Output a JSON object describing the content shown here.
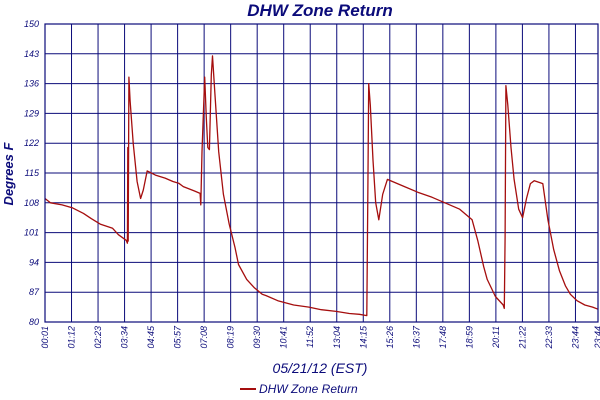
{
  "chart_data": {
    "type": "line",
    "title": "DHW Zone Return",
    "xlabel": "05/21/12 (EST)",
    "ylabel": "Degrees F",
    "ylim": [
      80,
      150
    ],
    "yticks": [
      80,
      87,
      94,
      101,
      108,
      115,
      122,
      129,
      136,
      143,
      150
    ],
    "xlim": [
      "00:01",
      "23:44"
    ],
    "xtick_labels": [
      "00:01",
      "01:12",
      "02:23",
      "03:34",
      "04:45",
      "05:57",
      "07:08",
      "08:19",
      "09:30",
      "10:41",
      "11:52",
      "13:04",
      "14:15",
      "15:26",
      "16:37",
      "17:48",
      "18:59",
      "20:11",
      "21:22",
      "22:33",
      "23:44",
      "23:44"
    ],
    "grid": true,
    "legend_position": "bottom-center",
    "colors": {
      "series": "#a50e0e",
      "axes": "#0b0b7a"
    },
    "series": [
      {
        "name": "DHW Zone Return",
        "color": "#a50e0e",
        "points": [
          [
            "00:01",
            109.0
          ],
          [
            "00:15",
            108.0
          ],
          [
            "00:45",
            107.5
          ],
          [
            "01:12",
            106.8
          ],
          [
            "01:40",
            105.5
          ],
          [
            "02:00",
            104.3
          ],
          [
            "02:23",
            103.0
          ],
          [
            "02:55",
            102.0
          ],
          [
            "03:10",
            100.5
          ],
          [
            "03:30",
            99.2
          ],
          [
            "03:33",
            98.5
          ],
          [
            "03:34",
            121.0
          ],
          [
            "03:35",
            99.0
          ],
          [
            "03:37",
            137.5
          ],
          [
            "03:40",
            132.0
          ],
          [
            "03:48",
            122.0
          ],
          [
            "03:58",
            113.0
          ],
          [
            "04:07",
            109.0
          ],
          [
            "04:14",
            111.0
          ],
          [
            "04:24",
            115.5
          ],
          [
            "04:45",
            114.5
          ],
          [
            "05:10",
            113.8
          ],
          [
            "05:30",
            113.0
          ],
          [
            "05:45",
            112.6
          ],
          [
            "05:57",
            111.8
          ],
          [
            "06:25",
            110.8
          ],
          [
            "06:40",
            110.2
          ],
          [
            "06:42",
            107.5
          ],
          [
            "06:45",
            120.0
          ],
          [
            "06:52",
            137.5
          ],
          [
            "06:56",
            128.0
          ],
          [
            "07:00",
            121.0
          ],
          [
            "07:04",
            120.5
          ],
          [
            "07:09",
            138.0
          ],
          [
            "07:12",
            142.5
          ],
          [
            "07:18",
            134.0
          ],
          [
            "07:28",
            120.0
          ],
          [
            "07:40",
            110.0
          ],
          [
            "07:55",
            103.0
          ],
          [
            "08:10",
            97.5
          ],
          [
            "08:19",
            93.5
          ],
          [
            "08:40",
            90.0
          ],
          [
            "09:00",
            88.0
          ],
          [
            "09:20",
            86.5
          ],
          [
            "09:30",
            86.2
          ],
          [
            "10:00",
            85.0
          ],
          [
            "10:41",
            84.0
          ],
          [
            "11:20",
            83.5
          ],
          [
            "11:52",
            82.9
          ],
          [
            "12:30",
            82.5
          ],
          [
            "13:04",
            82.0
          ],
          [
            "13:30",
            81.8
          ],
          [
            "13:49",
            81.5
          ],
          [
            "13:52",
            112.0
          ],
          [
            "13:54",
            136.0
          ],
          [
            "13:58",
            131.0
          ],
          [
            "14:05",
            118.0
          ],
          [
            "14:12",
            108.0
          ],
          [
            "14:20",
            104.0
          ],
          [
            "14:30",
            110.0
          ],
          [
            "14:42",
            113.5
          ],
          [
            "14:55",
            113.0
          ],
          [
            "15:26",
            111.8
          ],
          [
            "16:00",
            110.5
          ],
          [
            "16:37",
            109.3
          ],
          [
            "17:10",
            108.0
          ],
          [
            "17:48",
            106.5
          ],
          [
            "18:20",
            104.0
          ],
          [
            "18:35",
            99.0
          ],
          [
            "18:50",
            93.0
          ],
          [
            "18:59",
            90.0
          ],
          [
            "19:20",
            86.0
          ],
          [
            "19:40",
            84.0
          ],
          [
            "19:43",
            83.2
          ],
          [
            "19:45",
            100.0
          ],
          [
            "19:47",
            135.5
          ],
          [
            "19:52",
            131.0
          ],
          [
            "20:00",
            121.0
          ],
          [
            "20:08",
            113.5
          ],
          [
            "20:20",
            106.5
          ],
          [
            "20:30",
            104.5
          ],
          [
            "20:40",
            109.0
          ],
          [
            "20:50",
            112.5
          ],
          [
            "21:00",
            113.2
          ],
          [
            "21:22",
            112.5
          ],
          [
            "21:35",
            104.0
          ],
          [
            "21:50",
            97.0
          ],
          [
            "22:05",
            92.0
          ],
          [
            "22:20",
            88.5
          ],
          [
            "22:33",
            86.5
          ],
          [
            "22:50",
            85.0
          ],
          [
            "23:10",
            84.0
          ],
          [
            "23:30",
            83.5
          ],
          [
            "23:44",
            83.0
          ]
        ]
      }
    ]
  }
}
